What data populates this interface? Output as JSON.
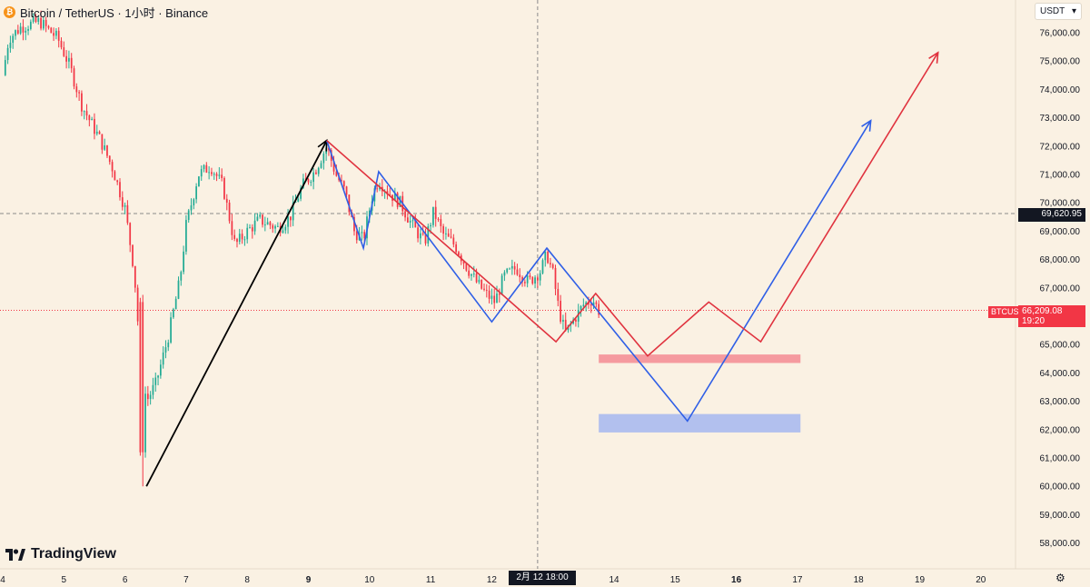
{
  "header": {
    "icon": "bitcoin-coin-icon",
    "title": "Bitcoin / TetherUS · 1小时 · Binance"
  },
  "currency_select": {
    "value": "USDT",
    "icon": "chevron-down-icon"
  },
  "watermark": {
    "text": "TradingView",
    "icon": "tradingview-logo-icon"
  },
  "crosshair": {
    "price_label": "69,620.95",
    "time_label": "2月 12   18:00",
    "plus_icon": "plus-circle-icon"
  },
  "last_price": {
    "symbol": "BTCUSDT",
    "price": "66,209.08",
    "countdown": "19:20"
  },
  "settings_icon": "gear-icon",
  "colors": {
    "background": "#faf1e3",
    "up": "#22ab94",
    "down": "#f23645",
    "blue_path": "#2f5fe6",
    "red_path": "#e0333f",
    "red_zone": "#f59a9f",
    "blue_zone": "#b2c0ee"
  },
  "chart_data": {
    "type": "candlestick",
    "timeframe": "1小时",
    "ylim": [
      57500,
      77000
    ],
    "y_ticks": [
      "76,000.00",
      "75,000.00",
      "74,000.00",
      "73,000.00",
      "72,000.00",
      "71,000.00",
      "70,000.00",
      "69,000.00",
      "68,000.00",
      "67,000.00",
      "66,000.00",
      "65,000.00",
      "64,000.00",
      "63,000.00",
      "62,000.00",
      "61,000.00",
      "60,000.00",
      "59,000.00",
      "58,000.00"
    ],
    "y_tick_values": [
      76000,
      75000,
      74000,
      73000,
      72000,
      71000,
      70000,
      69000,
      68000,
      67000,
      66000,
      65000,
      64000,
      63000,
      62000,
      61000,
      60000,
      59000,
      58000
    ],
    "x_ticks": [
      {
        "label": "4",
        "day": 4,
        "bold": false
      },
      {
        "label": "5",
        "day": 5,
        "bold": false
      },
      {
        "label": "6",
        "day": 6,
        "bold": false
      },
      {
        "label": "7",
        "day": 7,
        "bold": false
      },
      {
        "label": "8",
        "day": 8,
        "bold": false
      },
      {
        "label": "9",
        "day": 9,
        "bold": true
      },
      {
        "label": "10",
        "day": 10,
        "bold": false
      },
      {
        "label": "11",
        "day": 11,
        "bold": false
      },
      {
        "label": "12",
        "day": 12,
        "bold": false
      },
      {
        "label": "14",
        "day": 14,
        "bold": false
      },
      {
        "label": "15",
        "day": 15,
        "bold": false
      },
      {
        "label": "16",
        "day": 16,
        "bold": true
      },
      {
        "label": "17",
        "day": 17,
        "bold": false
      },
      {
        "label": "18",
        "day": 18,
        "bold": false
      },
      {
        "label": "19",
        "day": 19,
        "bold": false
      },
      {
        "label": "20",
        "day": 20,
        "bold": false
      }
    ],
    "xlim_days": [
      4,
      21.4
    ],
    "price_path": [
      [
        4.0,
        74500
      ],
      [
        4.1,
        75800
      ],
      [
        4.3,
        76200
      ],
      [
        4.6,
        76400
      ],
      [
        4.9,
        75800
      ],
      [
        5.1,
        74800
      ],
      [
        5.3,
        73400
      ],
      [
        5.6,
        72200
      ],
      [
        5.8,
        71200
      ],
      [
        6.0,
        69800
      ],
      [
        6.15,
        67600
      ],
      [
        6.25,
        64600
      ],
      [
        6.35,
        63000
      ],
      [
        6.5,
        63600
      ],
      [
        6.7,
        65200
      ],
      [
        6.9,
        67300
      ],
      [
        7.0,
        69200
      ],
      [
        7.2,
        71000
      ],
      [
        7.4,
        71300
      ],
      [
        7.6,
        70600
      ],
      [
        7.8,
        68500
      ],
      [
        8.0,
        69000
      ],
      [
        8.2,
        69400
      ],
      [
        8.5,
        69100
      ],
      [
        8.7,
        69500
      ],
      [
        8.9,
        70600
      ],
      [
        9.1,
        71100
      ],
      [
        9.3,
        72000
      ],
      [
        9.45,
        71000
      ],
      [
        9.6,
        70400
      ],
      [
        9.75,
        69000
      ],
      [
        9.9,
        68700
      ],
      [
        10.05,
        70300
      ],
      [
        10.15,
        70800
      ],
      [
        10.3,
        70400
      ],
      [
        10.5,
        70000
      ],
      [
        10.7,
        69200
      ],
      [
        10.9,
        68600
      ],
      [
        11.05,
        69700
      ],
      [
        11.2,
        68900
      ],
      [
        11.4,
        68500
      ],
      [
        11.6,
        67700
      ],
      [
        11.75,
        67200
      ],
      [
        11.9,
        66800
      ],
      [
        12.05,
        66500
      ],
      [
        12.2,
        67400
      ],
      [
        12.4,
        67700
      ],
      [
        12.6,
        67200
      ],
      [
        12.8,
        67600
      ],
      [
        12.9,
        68200
      ],
      [
        13.0,
        67500
      ],
      [
        13.1,
        66200
      ],
      [
        13.2,
        65400
      ],
      [
        13.35,
        65900
      ],
      [
        13.5,
        66400
      ],
      [
        13.65,
        66600
      ],
      [
        13.75,
        66209
      ]
    ],
    "annotations": {
      "black_up_line": [
        [
          6.35,
          60000
        ],
        [
          9.3,
          72200
        ]
      ],
      "blue_path": [
        [
          9.3,
          72200
        ],
        [
          9.9,
          68400
        ],
        [
          10.15,
          71100
        ],
        [
          12.0,
          65800
        ],
        [
          12.9,
          68400
        ],
        [
          15.2,
          62300
        ],
        [
          18.2,
          72900
        ]
      ],
      "red_path": [
        [
          9.3,
          72200
        ],
        [
          13.05,
          65100
        ],
        [
          13.7,
          66800
        ],
        [
          14.55,
          64600
        ],
        [
          15.55,
          66500
        ],
        [
          16.4,
          65100
        ],
        [
          19.3,
          75300
        ]
      ],
      "red_zone": {
        "x_from": 13.75,
        "x_to": 17.05,
        "y_from": 64350,
        "y_to": 64650
      },
      "blue_zone": {
        "x_from": 13.75,
        "x_to": 17.05,
        "y_from": 61900,
        "y_to": 62550
      },
      "crosshair_x_day": 12.75,
      "crosshair_y": 69620.95,
      "last_price_y": 66209.08
    }
  }
}
